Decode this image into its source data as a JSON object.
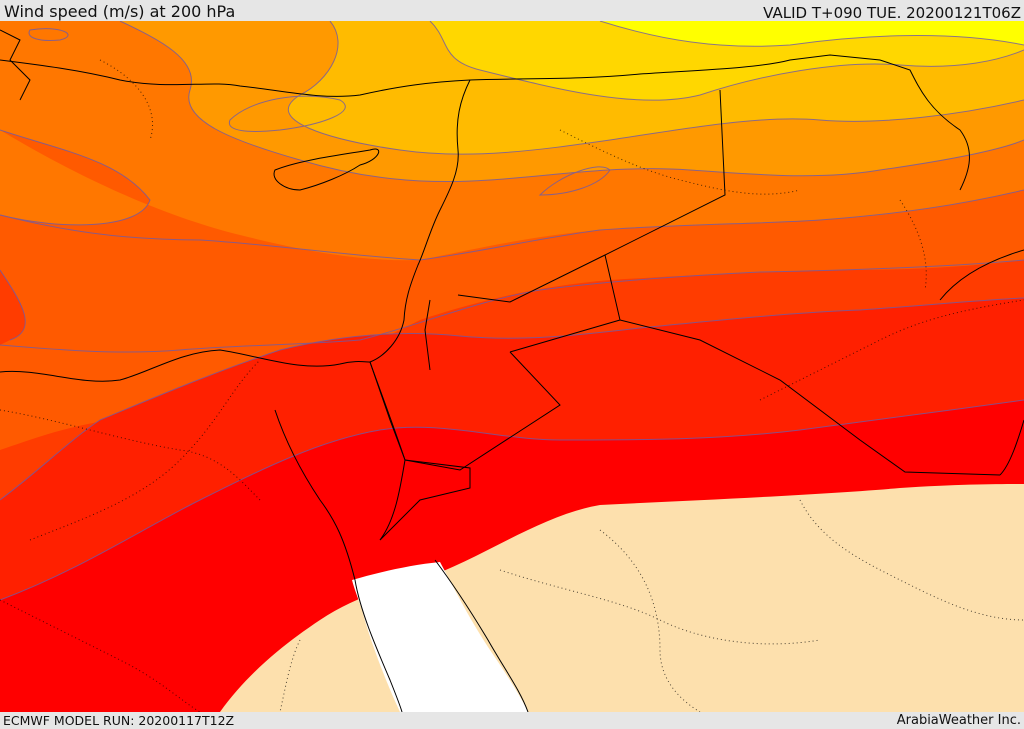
{
  "header": {
    "title": "Wind speed (m/s) at 200 hPa",
    "valid_time": "VALID T+090 TUE. 20200121T06Z"
  },
  "footer": {
    "model_run": "ECMWF MODEL RUN: 20200117T12Z",
    "provider": "ArabiaWeather Inc."
  },
  "map": {
    "variable": "wind speed",
    "pressure_level_hPa": 200,
    "units": "m/s",
    "colors": {
      "level_1": "#ffff00",
      "level_2": "#ffd700",
      "level_3": "#ffbb00",
      "level_4": "#ff9900",
      "level_5": "#ff7700",
      "level_6": "#ff5a00",
      "level_7": "#ff3c00",
      "level_8": "#ff2000",
      "level_9": "#ff0000",
      "below_threshold": "#fde0ad",
      "water_no_data": "#ffffff",
      "contour": "#6e5aa8"
    }
  }
}
